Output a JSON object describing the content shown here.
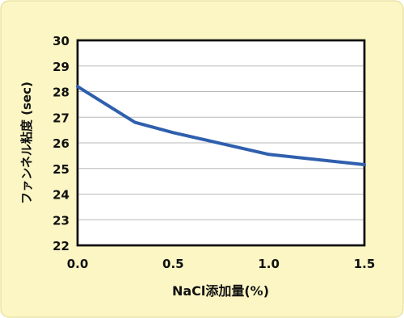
{
  "chart_data": {
    "type": "line",
    "xlabel": "NaCl添加量(%)",
    "ylabel": "ファンネル粘度 (sec)",
    "xlim": [
      0.0,
      1.5
    ],
    "ylim": [
      22,
      30
    ],
    "x_ticks": [
      "0.0",
      "0.5",
      "1.0",
      "1.5"
    ],
    "y_ticks": [
      "22",
      "23",
      "24",
      "25",
      "26",
      "27",
      "28",
      "29",
      "30"
    ],
    "grid": true,
    "legend": "none",
    "series": [
      {
        "color": "#2f5fae",
        "x": [
          0.0,
          0.3,
          0.5,
          1.0,
          1.5
        ],
        "y": [
          28.2,
          26.8,
          26.4,
          25.55,
          25.15
        ]
      }
    ]
  },
  "colors": {
    "background": "#fbf6c4",
    "plot_area": "#ffffff",
    "grid": "#b8b8b8",
    "axis": "#111111",
    "line": "#2f5fae",
    "text": "#111111"
  }
}
